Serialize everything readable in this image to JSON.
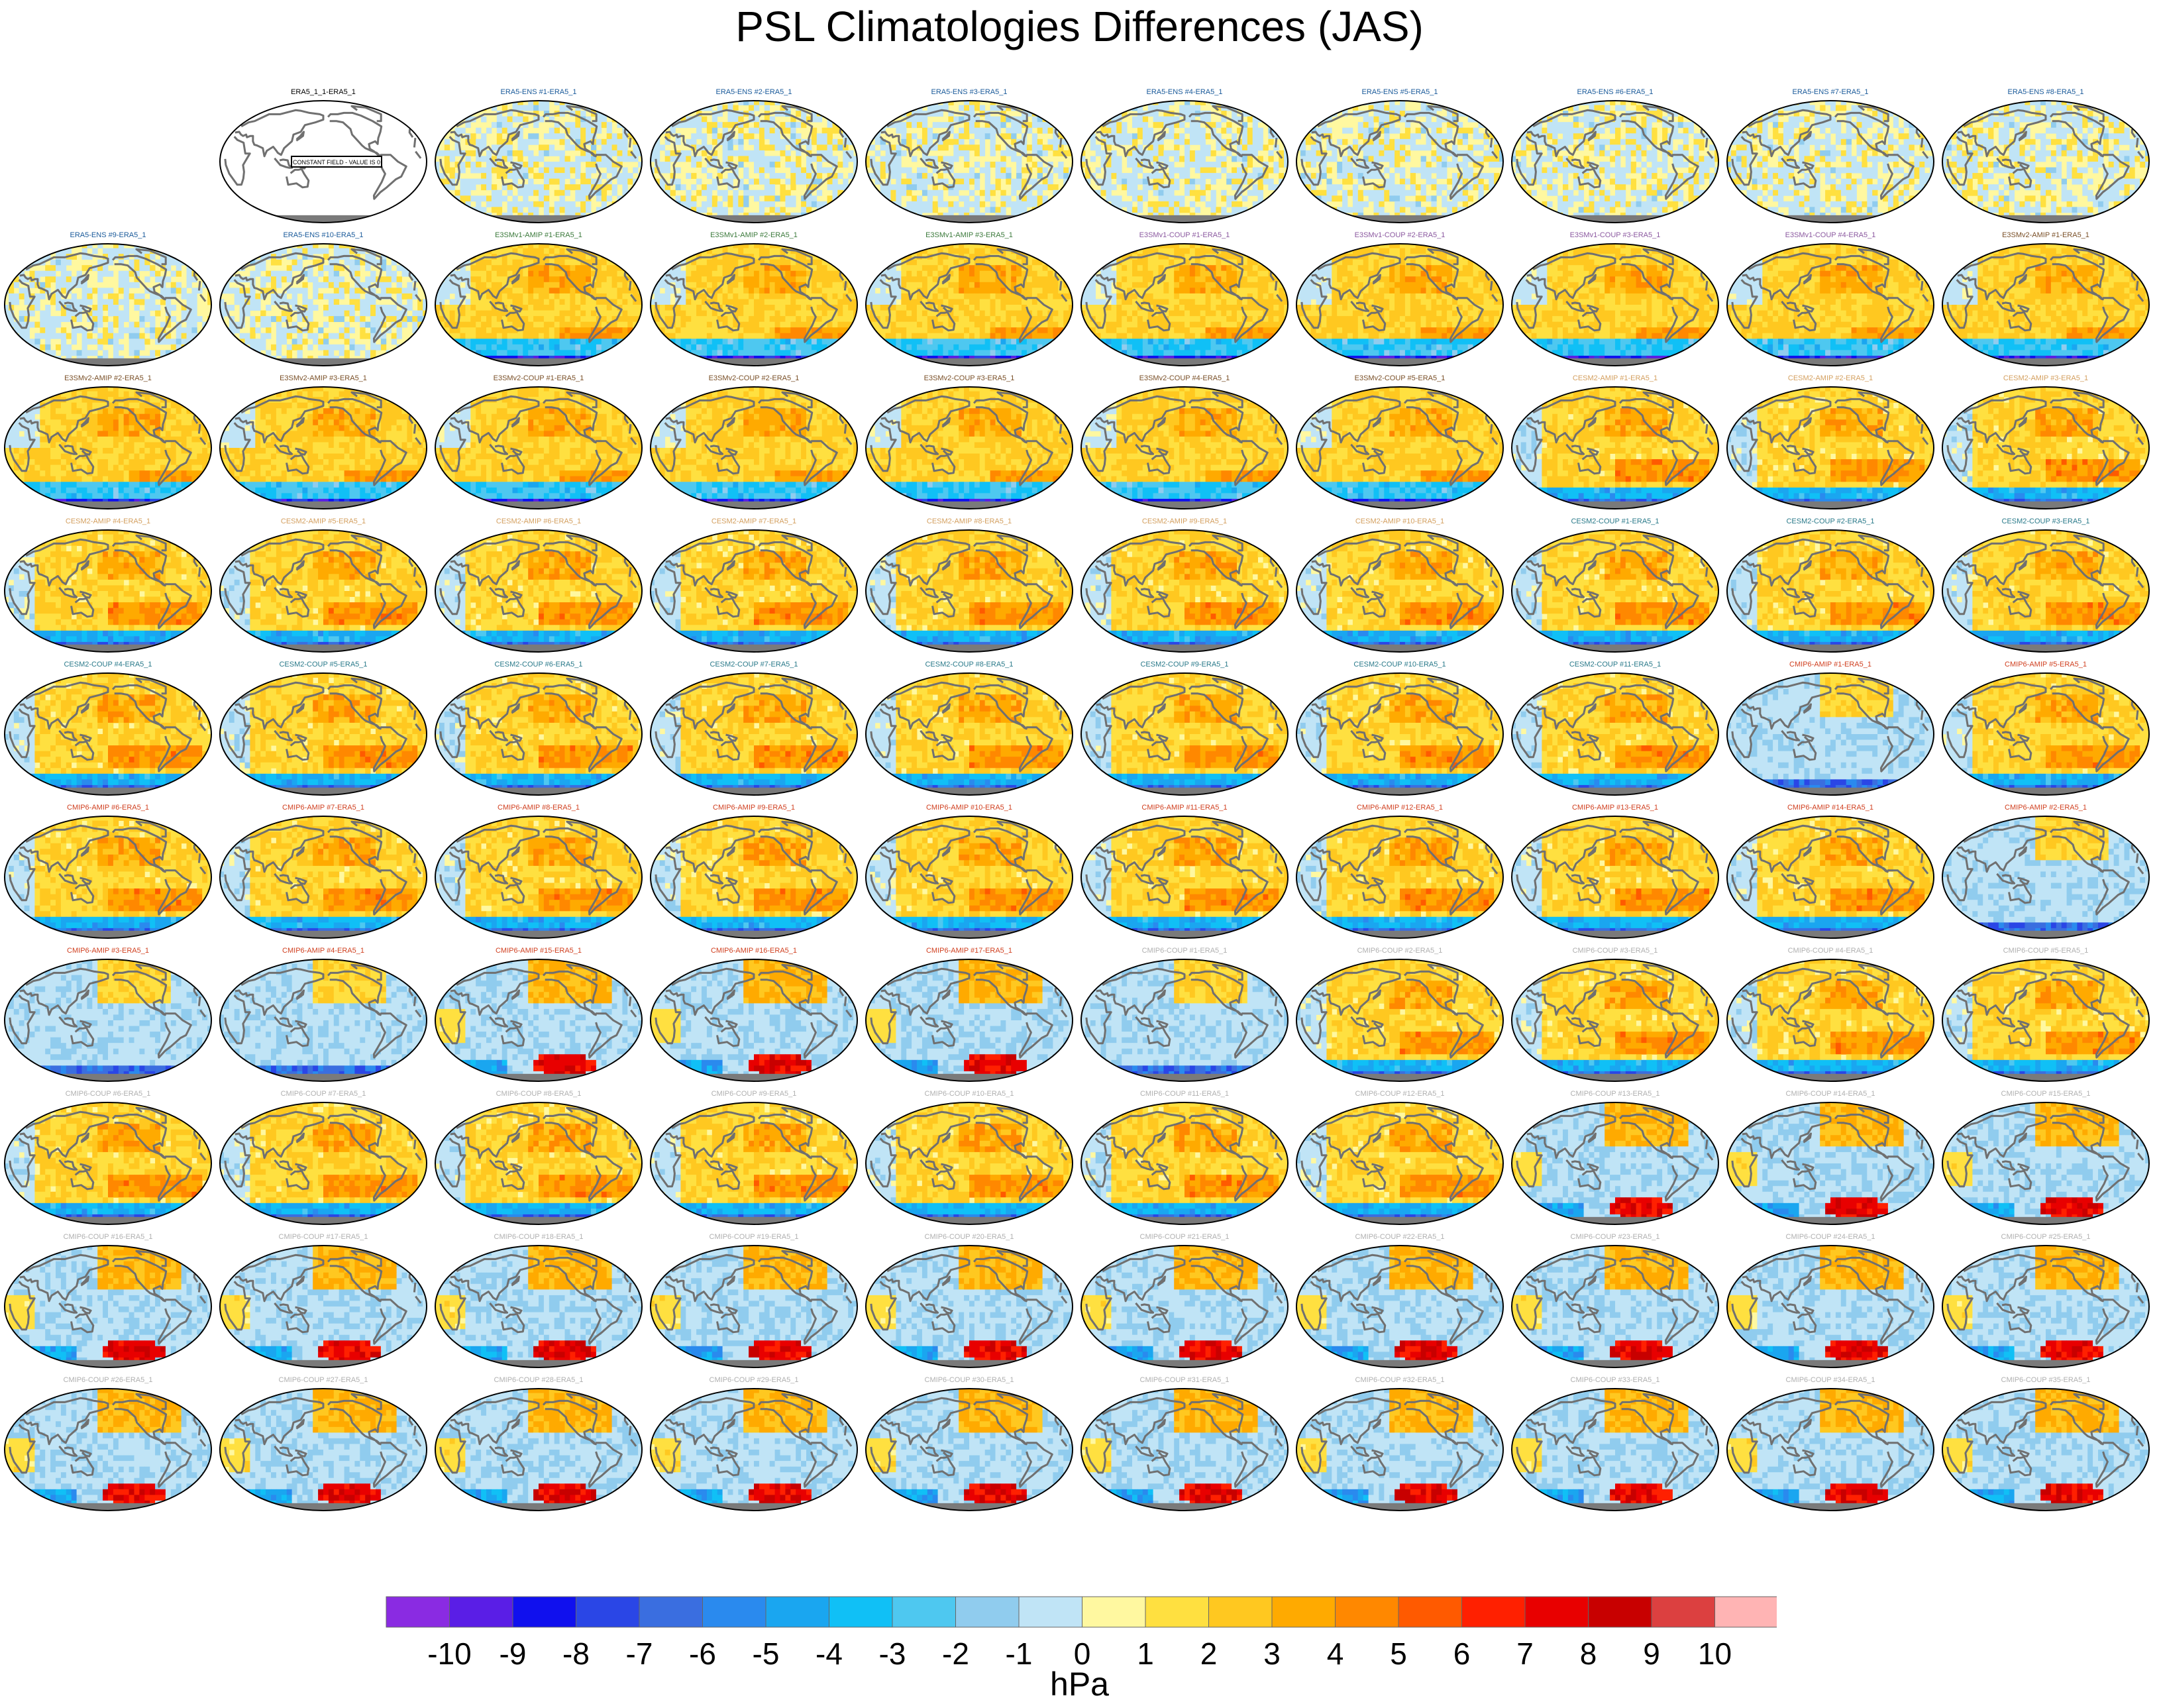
{
  "title": "PSL Climatologies Differences (JAS)",
  "colors": {
    "coast": "#707070",
    "land_fill": "#7a7a7a",
    "outline": "#000000",
    "title_era5": "#000000",
    "title_ens": "#1a5a9a",
    "title_e3sm1_amip": "#3c7a3c",
    "title_e3sm1_coup": "#8c5aa0",
    "title_e3sm2": "#7a5028",
    "title_cesm2_amip": "#d4a060",
    "title_cesm2_coup": "#2a7a8a",
    "title_cmip6_amip": "#d04020",
    "title_cmip6_coup": "#b0b0b0"
  },
  "panel_titles": [
    "ERA5_1_1-ERA5_1",
    "ERA5-ENS   #1-ERA5_1",
    "ERA5-ENS   #2-ERA5_1",
    "ERA5-ENS   #3-ERA5_1",
    "ERA5-ENS   #4-ERA5_1",
    "ERA5-ENS   #5-ERA5_1",
    "ERA5-ENS   #6-ERA5_1",
    "ERA5-ENS   #7-ERA5_1",
    "ERA5-ENS   #8-ERA5_1",
    "ERA5-ENS   #9-ERA5_1",
    "ERA5-ENS   #10-ERA5_1",
    "E3SMv1-AMIP #1-ERA5_1",
    "E3SMv1-AMIP #2-ERA5_1",
    "E3SMv1-AMIP #3-ERA5_1",
    "E3SMv1-COUP #1-ERA5_1",
    "E3SMv1-COUP #2-ERA5_1",
    "E3SMv1-COUP #3-ERA5_1",
    "E3SMv1-COUP #4-ERA5_1",
    "E3SMv2-AMIP #1-ERA5_1",
    "E3SMv2-AMIP #2-ERA5_1",
    "E3SMv2-AMIP #3-ERA5_1",
    "E3SMv2-COUP #1-ERA5_1",
    "E3SMv2-COUP #2-ERA5_1",
    "E3SMv2-COUP #3-ERA5_1",
    "E3SMv2-COUP #4-ERA5_1",
    "E3SMv2-COUP #5-ERA5_1",
    "CESM2-AMIP  #1-ERA5_1",
    "CESM2-AMIP  #2-ERA5_1",
    "CESM2-AMIP  #3-ERA5_1",
    "CESM2-AMIP  #4-ERA5_1",
    "CESM2-AMIP  #5-ERA5_1",
    "CESM2-AMIP  #6-ERA5_1",
    "CESM2-AMIP  #7-ERA5_1",
    "CESM2-AMIP  #8-ERA5_1",
    "CESM2-AMIP  #9-ERA5_1",
    "CESM2-AMIP  #10-ERA5_1",
    "CESM2-COUP  #1-ERA5_1",
    "CESM2-COUP  #2-ERA5_1",
    "CESM2-COUP  #3-ERA5_1",
    "CESM2-COUP  #4-ERA5_1",
    "CESM2-COUP  #5-ERA5_1",
    "CESM2-COUP  #6-ERA5_1",
    "CESM2-COUP  #7-ERA5_1",
    "CESM2-COUP  #8-ERA5_1",
    "CESM2-COUP  #9-ERA5_1",
    "CESM2-COUP  #10-ERA5_1",
    "CESM2-COUP  #11-ERA5_1",
    "CMIP6-AMIP  #1-ERA5_1",
    "CMIP6-AMIP  #5-ERA5_1",
    "CMIP6-AMIP  #6-ERA5_1",
    "CMIP6-AMIP  #7-ERA5_1",
    "CMIP6-AMIP  #8-ERA5_1",
    "CMIP6-AMIP  #9-ERA5_1",
    "CMIP6-AMIP  #10-ERA5_1",
    "CMIP6-AMIP  #11-ERA5_1",
    "CMIP6-AMIP  #12-ERA5_1",
    "CMIP6-AMIP  #13-ERA5_1",
    "CMIP6-AMIP  #14-ERA5_1",
    "CMIP6-AMIP  #2-ERA5_1",
    "CMIP6-AMIP  #3-ERA5_1",
    "CMIP6-AMIP  #4-ERA5_1",
    "CMIP6-AMIP  #15-ERA5_1",
    "CMIP6-AMIP  #16-ERA5_1",
    "CMIP6-AMIP  #17-ERA5_1",
    "CMIP6-COUP  #1-ERA5_1",
    "CMIP6-COUP  #2-ERA5_1",
    "CMIP6-COUP  #3-ERA5_1",
    "CMIP6-COUP  #4-ERA5_1",
    "CMIP6-COUP  #5-ERA5_1",
    "CMIP6-COUP  #6-ERA5_1",
    "CMIP6-COUP  #7-ERA5_1",
    "CMIP6-COUP  #8-ERA5_1",
    "CMIP6-COUP  #9-ERA5_1",
    "CMIP6-COUP  #10-ERA5_1",
    "CMIP6-COUP  #11-ERA5_1",
    "CMIP6-COUP  #12-ERA5_1",
    "CMIP6-COUP  #13-ERA5_1",
    "CMIP6-COUP  #14-ERA5_1",
    "CMIP6-COUP  #15-ERA5_1",
    "CMIP6-COUP  #16-ERA5_1",
    "CMIP6-COUP  #17-ERA5_1",
    "CMIP6-COUP  #18-ERA5_1",
    "CMIP6-COUP  #19-ERA5_1",
    "CMIP6-COUP  #20-ERA5_1",
    "CMIP6-COUP  #21-ERA5_1",
    "CMIP6-COUP  #22-ERA5_1",
    "CMIP6-COUP  #23-ERA5_1",
    "CMIP6-COUP  #24-ERA5_1",
    "CMIP6-COUP  #25-ERA5_1",
    "CMIP6-COUP  #26-ERA5_1",
    "CMIP6-COUP  #27-ERA5_1",
    "CMIP6-COUP  #28-ERA5_1",
    "CMIP6-COUP  #29-ERA5_1",
    "CMIP6-COUP  #30-ERA5_1",
    "CMIP6-COUP  #31-ERA5_1",
    "CMIP6-COUP  #32-ERA5_1",
    "CMIP6-COUP  #33-ERA5_1",
    "CMIP6-COUP  #34-ERA5_1",
    "CMIP6-COUP  #35-ERA5_1"
  ],
  "first_panel_label": "CONSTANT FIELD - VALUE IS 0",
  "chart_data": {
    "type": "heatmap",
    "title": "PSL Climatologies Differences (JAS)",
    "colorbar": {
      "label": "hPa",
      "tick_labels": [
        "-10",
        "-9",
        "-8",
        "-7",
        "-6",
        "-5",
        "-4",
        "-3",
        "-2",
        "-1",
        "0",
        "1",
        "2",
        "3",
        "4",
        "5",
        "6",
        "7",
        "8",
        "9",
        "10"
      ],
      "colors": [
        "#8a2be2",
        "#5a1ee6",
        "#1010ee",
        "#2a46e6",
        "#3a6ee0",
        "#2a8aee",
        "#1aa6f0",
        "#10c0f6",
        "#4ec8f0",
        "#90ccee",
        "#c0e4f6",
        "#fff8a0",
        "#ffe040",
        "#ffc820",
        "#ffaa00",
        "#ff8800",
        "#ff5a00",
        "#ff2000",
        "#e80000",
        "#c80000",
        "#dc4040",
        "#ffb4b4"
      ]
    },
    "panel_patterns": [
      "zero",
      "ens",
      "ens",
      "ens",
      "ens",
      "ens",
      "ens",
      "ens",
      "ens",
      "ens",
      "ens",
      "e3sm",
      "e3sm",
      "e3sm",
      "e3sm",
      "e3sm",
      "e3sm",
      "e3sm",
      "e3sm",
      "e3sm",
      "e3sm",
      "e3sm",
      "e3sm",
      "e3sm",
      "e3sm",
      "e3sm",
      "cesm",
      "cesm",
      "cesm",
      "cesm",
      "cesm",
      "cesm",
      "cesm",
      "cesm",
      "cesm",
      "cesm",
      "cesm",
      "cesm",
      "cesm",
      "cesm",
      "cesm",
      "cesm",
      "cesm",
      "cesm",
      "cesm",
      "cesm",
      "cesm",
      "cmip_neg",
      "cesm",
      "cesm",
      "cesm",
      "cesm",
      "cesm",
      "cesm",
      "cesm",
      "cesm",
      "cesm",
      "cesm",
      "cmip_neg",
      "cmip_neg",
      "cmip_neg",
      "cmip_red",
      "cmip_red",
      "cmip_red",
      "cmip_neg",
      "cesm",
      "cesm",
      "cesm",
      "cesm",
      "cesm",
      "cesm",
      "cesm",
      "cesm",
      "cesm",
      "cesm",
      "cesm",
      "cmip_red",
      "cmip_red",
      "cmip_red",
      "cmip_red",
      "cmip_red",
      "cmip_red",
      "cmip_red",
      "cmip_red",
      "cmip_red",
      "cmip_red",
      "cmip_red",
      "cmip_red",
      "cmip_red",
      "cmip_red",
      "cmip_red",
      "cmip_red",
      "cmip_red",
      "cmip_red",
      "cmip_red",
      "cmip_red",
      "cmip_red",
      "cmip_red",
      "cmip_red"
    ]
  }
}
